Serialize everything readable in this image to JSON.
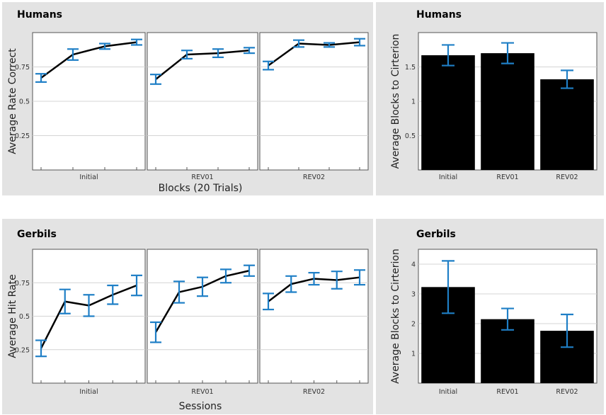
{
  "chart_data": [
    {
      "type": "line",
      "title": "Humans",
      "xlabel": "Blocks (20 Trials)",
      "ylabel": "Average Rate Correct",
      "ylim": [
        0,
        1
      ],
      "yticks": [
        "0.25",
        "0.5",
        "0.75"
      ],
      "facets": [
        {
          "label": "Initial",
          "values": [
            0.67,
            0.84,
            0.9,
            0.93
          ],
          "err": [
            0.03,
            0.04,
            0.02,
            0.02
          ]
        },
        {
          "label": "REV01",
          "values": [
            0.66,
            0.84,
            0.85,
            0.87
          ],
          "err": [
            0.035,
            0.03,
            0.03,
            0.02
          ]
        },
        {
          "label": "REV02",
          "values": [
            0.76,
            0.92,
            0.91,
            0.93
          ],
          "err": [
            0.03,
            0.025,
            0.015,
            0.025
          ]
        }
      ]
    },
    {
      "type": "bar",
      "title": "Humans",
      "ylabel": "Average Blocks to Cirterion",
      "ylim": [
        0,
        2
      ],
      "yticks": [
        "0.5",
        "1",
        "1.5"
      ],
      "categories": [
        "Initial",
        "REV01",
        "REV02"
      ],
      "values": [
        1.67,
        1.7,
        1.32
      ],
      "err": [
        0.15,
        0.15,
        0.13
      ]
    },
    {
      "type": "line",
      "title": "Gerbils",
      "xlabel": "Sessions",
      "ylabel": "Average Hit Rate",
      "ylim": [
        0,
        1
      ],
      "yticks": [
        "0.25",
        "0.5",
        "0.75"
      ],
      "facets": [
        {
          "label": "Initial",
          "values": [
            0.26,
            0.61,
            0.58,
            0.66,
            0.73
          ],
          "err": [
            0.06,
            0.09,
            0.08,
            0.07,
            0.075
          ]
        },
        {
          "label": "REV01",
          "values": [
            0.38,
            0.68,
            0.72,
            0.8,
            0.84
          ],
          "err": [
            0.075,
            0.08,
            0.07,
            0.05,
            0.04
          ]
        },
        {
          "label": "REV02",
          "values": [
            0.61,
            0.74,
            0.78,
            0.77,
            0.79
          ],
          "err": [
            0.06,
            0.06,
            0.045,
            0.065,
            0.055
          ]
        }
      ]
    },
    {
      "type": "bar",
      "title": "Gerbils",
      "ylabel": "Average Blocks to Cirterion",
      "ylim": [
        0,
        4.5
      ],
      "yticks": [
        "1",
        "2",
        "3",
        "4"
      ],
      "categories": [
        "Initial",
        "REV01",
        "REV02"
      ],
      "values": [
        3.23,
        2.15,
        1.76
      ],
      "err": [
        0.88,
        0.36,
        0.55
      ]
    }
  ],
  "colors": {
    "panel_bg": "#e3e3e3",
    "plot_bg": "#ffffff",
    "grid": "#d4d4d4",
    "line": "#000000",
    "errorbar": "#1f7fc6",
    "bar": "#000000"
  }
}
